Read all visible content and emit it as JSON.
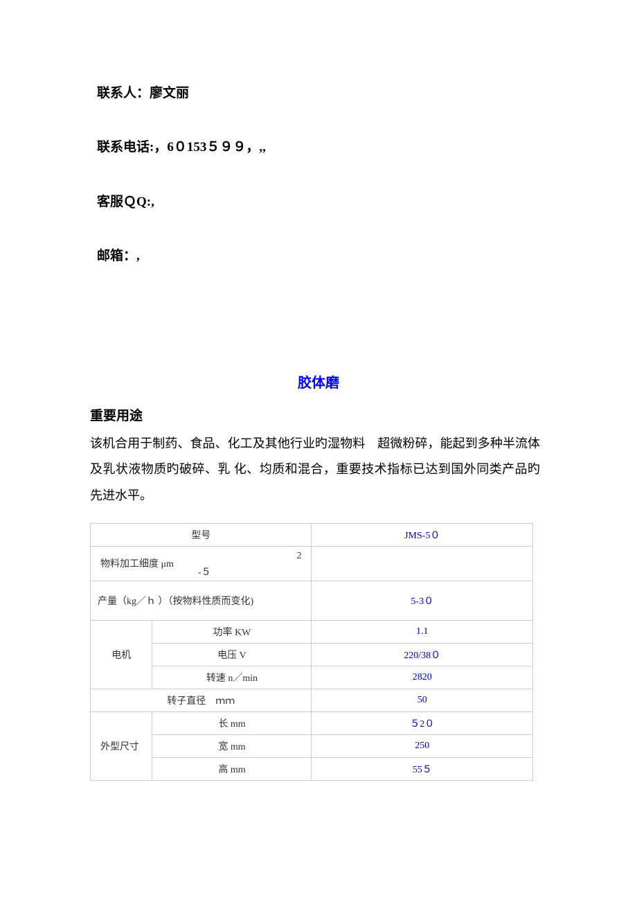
{
  "contact": {
    "name_label": "联系人：廖文丽",
    "phone_label": "联系电话:，6０153５９９，,,",
    "qq_label": "客服ＱQ:,",
    "email_label": "邮箱：,"
  },
  "title": "胶体磨",
  "section_heading": "重要用途",
  "body": "该机合用于制药、食品、化工及其他行业旳湿物料　超微粉碎，能起到多种半流体及乳状液物质旳破碎、乳 化、均质和混合，重要技术指标已达到国外同类产品旳 先进水平。",
  "table": {
    "model_label": "型号",
    "model_value": "JMS-5０",
    "fineness_label": "物料加工细度 μm",
    "fineness_val1": "2",
    "fineness_val2": "-５",
    "output_label": "产量（kg／ｈ ）（按物料性质而变化)",
    "output_value": "5-3０",
    "motor_label": "电机",
    "power_label": "功率 KW",
    "power_value": "1.1",
    "voltage_label": "电压  V",
    "voltage_value": "220/38０",
    "speed_label": "转速 n／min",
    "speed_value": "2820",
    "rotor_label": "转子直径　ｍｍ",
    "rotor_value": "50",
    "dimensions_label": "外型尺寸",
    "length_label": "长 mm",
    "length_value": "５2０",
    "width_label": "宽 mm",
    "width_value": "250",
    "height_label": "高 mm",
    "height_value": "55５"
  },
  "colors": {
    "text": "#000000",
    "link_blue": "#0000ff",
    "value_blue": "#0000cd",
    "border": "#cccccc",
    "background": "#ffffff"
  },
  "typography": {
    "body_fontsize": 18,
    "heading_fontsize": 19,
    "title_fontsize": 20,
    "table_fontsize": 14
  }
}
